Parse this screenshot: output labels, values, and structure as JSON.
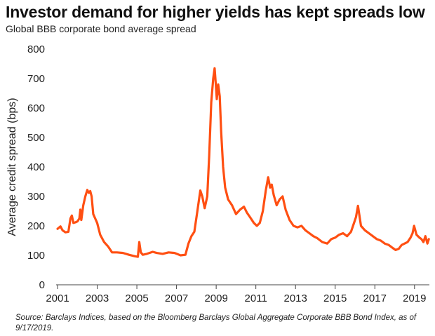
{
  "header": {
    "title": "Investor demand for higher yields has kept spreads low",
    "subtitle": "Global BBB corporate bond average spread"
  },
  "footer": {
    "source": "Source: Barclays Indices, based on the Bloomberg Barclays Global Aggregate Corporate BBB Bond Index, as of 9/17/2019."
  },
  "chart_data": {
    "type": "line",
    "title": "Investor demand for higher yields has kept spreads low",
    "subtitle": "Global BBB corporate bond average spread",
    "xlabel": "",
    "ylabel": "Average credit spread (bps)",
    "xlim": [
      2001,
      2019.75
    ],
    "ylim": [
      0,
      800
    ],
    "x_ticks": [
      "2001",
      "2003",
      "2005",
      "2007",
      "2009",
      "2011",
      "2013",
      "2015",
      "2017",
      "2019"
    ],
    "y_ticks": [
      "0",
      "100",
      "200",
      "300",
      "400",
      "500",
      "600",
      "700",
      "800"
    ],
    "grid": false,
    "legend": "none",
    "line_color": "#FF4F12",
    "series": [
      {
        "x": [
          2001.0,
          2001.15,
          2001.25,
          2001.4,
          2001.55,
          2001.65,
          2001.72,
          2001.8,
          2001.9,
          2002.0,
          2002.1,
          2002.15,
          2002.2,
          2002.3,
          2002.4,
          2002.5,
          2002.58,
          2002.65,
          2002.72,
          2002.8,
          2002.9,
          2003.0,
          2003.15,
          2003.35,
          2003.55,
          2003.75,
          2004.0,
          2004.3,
          2004.6,
          2004.9,
          2005.05,
          2005.12,
          2005.2,
          2005.3,
          2005.5,
          2005.8,
          2006.0,
          2006.3,
          2006.6,
          2006.9,
          2007.2,
          2007.45,
          2007.6,
          2007.75,
          2007.9,
          2008.05,
          2008.2,
          2008.3,
          2008.42,
          2008.55,
          2008.65,
          2008.75,
          2008.85,
          2008.92,
          2008.97,
          2009.03,
          2009.1,
          2009.18,
          2009.25,
          2009.35,
          2009.45,
          2009.6,
          2009.8,
          2010.0,
          2010.2,
          2010.4,
          2010.55,
          2010.7,
          2010.9,
          2011.05,
          2011.2,
          2011.35,
          2011.5,
          2011.62,
          2011.72,
          2011.8,
          2011.9,
          2012.05,
          2012.2,
          2012.35,
          2012.5,
          2012.7,
          2012.9,
          2013.1,
          2013.3,
          2013.5,
          2013.7,
          2013.9,
          2014.1,
          2014.35,
          2014.6,
          2014.8,
          2015.0,
          2015.2,
          2015.4,
          2015.6,
          2015.8,
          2015.95,
          2016.05,
          2016.15,
          2016.3,
          2016.5,
          2016.7,
          2016.9,
          2017.1,
          2017.3,
          2017.5,
          2017.7,
          2017.9,
          2018.05,
          2018.2,
          2018.35,
          2018.5,
          2018.65,
          2018.8,
          2018.9,
          2018.98,
          2019.1,
          2019.25,
          2019.35,
          2019.45,
          2019.55,
          2019.65,
          2019.72
        ],
        "values": [
          190,
          198,
          185,
          178,
          180,
          225,
          235,
          210,
          212,
          215,
          225,
          255,
          220,
          270,
          300,
          322,
          312,
          318,
          300,
          240,
          225,
          210,
          170,
          145,
          130,
          110,
          110,
          108,
          102,
          97,
          95,
          145,
          110,
          102,
          105,
          112,
          108,
          105,
          110,
          108,
          100,
          102,
          140,
          165,
          180,
          250,
          320,
          300,
          260,
          300,
          440,
          620,
          700,
          735,
          690,
          630,
          680,
          640,
          520,
          400,
          330,
          290,
          270,
          240,
          255,
          265,
          245,
          230,
          210,
          200,
          210,
          250,
          320,
          365,
          330,
          340,
          305,
          270,
          290,
          300,
          255,
          220,
          200,
          195,
          200,
          185,
          175,
          165,
          158,
          145,
          140,
          155,
          160,
          170,
          175,
          165,
          180,
          210,
          230,
          268,
          200,
          185,
          175,
          165,
          155,
          150,
          140,
          135,
          125,
          118,
          122,
          135,
          140,
          145,
          160,
          175,
          200,
          170,
          160,
          155,
          145,
          165,
          140,
          155
        ]
      }
    ]
  }
}
